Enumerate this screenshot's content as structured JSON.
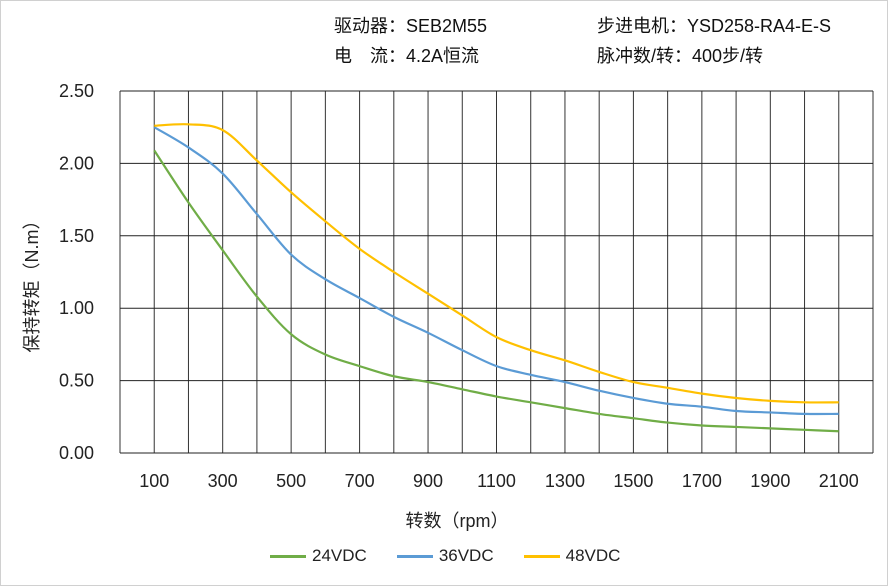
{
  "header": {
    "driver": "驱动器：SEB2M55",
    "motor": "步进电机：YSD258-RA4-E-S",
    "current": "电　流：4.2A恒流",
    "pulses": "脉冲数/转：400步/转"
  },
  "chart_data": {
    "type": "line",
    "title": "",
    "xlabel": "转数（rpm）",
    "ylabel": "保持转矩（N.m）",
    "xlim": [
      0,
      2200
    ],
    "ylim": [
      0,
      2.5
    ],
    "x_ticks": [
      100,
      300,
      500,
      700,
      900,
      1100,
      1300,
      1500,
      1700,
      1900,
      2100
    ],
    "y_ticks": [
      "0.00",
      "0.50",
      "1.00",
      "1.50",
      "2.00",
      "2.50"
    ],
    "grid": true,
    "legend_position": "bottom",
    "x": [
      100,
      200,
      300,
      400,
      500,
      600,
      700,
      800,
      900,
      1000,
      1100,
      1200,
      1300,
      1400,
      1500,
      1600,
      1700,
      1800,
      1900,
      2000,
      2100
    ],
    "series": [
      {
        "name": "24VDC",
        "color": "#70AD47",
        "values": [
          2.09,
          1.73,
          1.4,
          1.08,
          0.82,
          0.68,
          0.6,
          0.53,
          0.49,
          0.44,
          0.39,
          0.35,
          0.31,
          0.27,
          0.24,
          0.21,
          0.19,
          0.18,
          0.17,
          0.16,
          0.15
        ]
      },
      {
        "name": "36VDC",
        "color": "#5B9BD5",
        "values": [
          2.25,
          2.11,
          1.93,
          1.65,
          1.37,
          1.2,
          1.07,
          0.94,
          0.83,
          0.71,
          0.6,
          0.54,
          0.49,
          0.43,
          0.38,
          0.34,
          0.32,
          0.29,
          0.28,
          0.27,
          0.27
        ]
      },
      {
        "name": "48VDC",
        "color": "#FFC000",
        "values": [
          2.26,
          2.27,
          2.23,
          2.02,
          1.8,
          1.6,
          1.41,
          1.25,
          1.1,
          0.95,
          0.8,
          0.71,
          0.64,
          0.56,
          0.49,
          0.45,
          0.41,
          0.38,
          0.36,
          0.35,
          0.35
        ]
      }
    ]
  }
}
